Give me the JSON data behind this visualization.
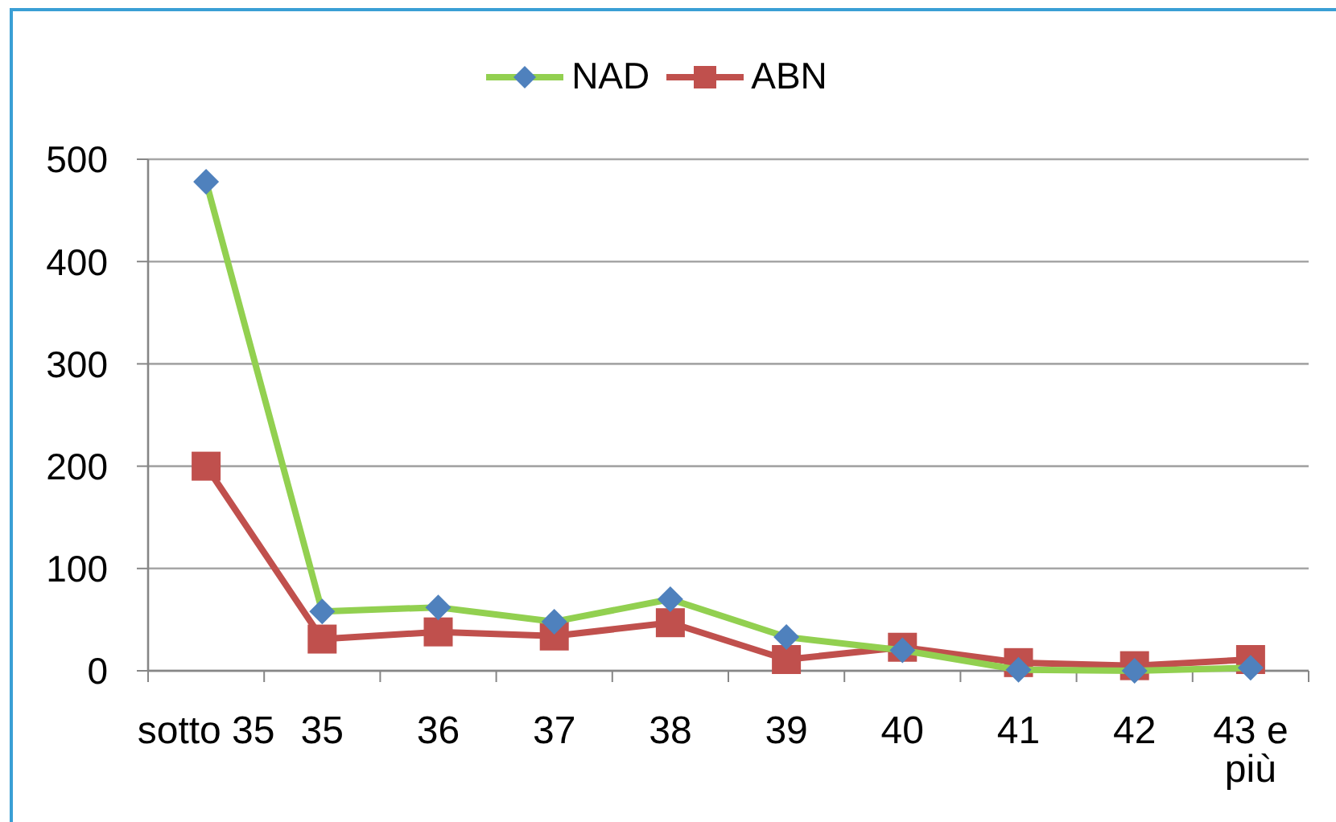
{
  "chart_data": {
    "type": "line",
    "categories": [
      "sotto 35",
      "35",
      "36",
      "37",
      "38",
      "39",
      "40",
      "41",
      "42",
      "43 e\npiù"
    ],
    "series": [
      {
        "name": "NAD",
        "color": "#92d050",
        "colors": [
          "#4f81bd",
          "#4f81bd",
          "#4f81bd",
          "#4f81bd",
          "#4f81bd",
          "#4f81bd",
          "#4f81bd",
          "#4f81bd",
          "#4f81bd",
          "#4f81bd"
        ],
        "marker": "diamond",
        "values": [
          478,
          58,
          62,
          48,
          70,
          33,
          20,
          1,
          0,
          3
        ]
      },
      {
        "name": "ABN",
        "color": "#c0504d",
        "marker": "square",
        "values": [
          200,
          31,
          38,
          34,
          47,
          11,
          23,
          8,
          5,
          11
        ]
      }
    ],
    "ylim": [
      0,
      500
    ],
    "yticks": [
      0,
      100,
      200,
      300,
      400,
      500
    ],
    "grid": "y",
    "legend": "top",
    "line_style": "solid"
  }
}
